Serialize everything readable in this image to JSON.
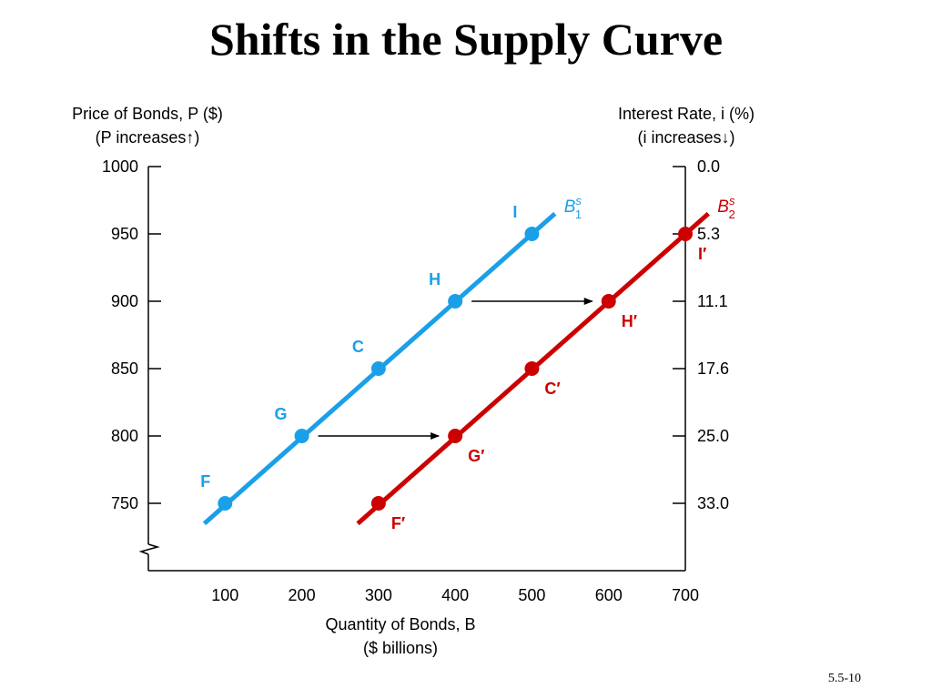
{
  "slide": {
    "title": "Shifts in the Supply Curve",
    "number": "5.5-10"
  },
  "colors": {
    "series1": "#1aa0e8",
    "series2": "#cc0000",
    "axis": "#000000"
  },
  "chart_data": {
    "type": "line",
    "title": "",
    "xlabel": "Quantity of Bonds, B",
    "xlabel_sub": "($ billions)",
    "ylabel_left": "Price of Bonds, P ($)",
    "ylabel_left_sub": "(P increases↑)",
    "ylabel_right": "Interest Rate, i (%)",
    "ylabel_right_sub": "(i increases↓)",
    "xlim": [
      0,
      700
    ],
    "ylim": [
      700,
      1000
    ],
    "xticks": [
      100,
      200,
      300,
      400,
      500,
      600,
      700
    ],
    "yticks": [
      750,
      800,
      850,
      900,
      950,
      1000
    ],
    "right_ticks": [
      "33.0",
      "25.0",
      "17.6",
      "11.1",
      "5.3",
      "0.0"
    ],
    "grid": false,
    "axis_break": true,
    "series": [
      {
        "name": "B1s",
        "label_main": "B",
        "label_sup": "s",
        "label_sub": "1",
        "color_key": "series1",
        "line": {
          "x": [
            73,
            530
          ],
          "y": [
            735,
            965
          ]
        },
        "points": [
          {
            "x": 100,
            "y": 750,
            "label": "F"
          },
          {
            "x": 200,
            "y": 800,
            "label": "G"
          },
          {
            "x": 300,
            "y": 850,
            "label": "C"
          },
          {
            "x": 400,
            "y": 900,
            "label": "H"
          },
          {
            "x": 500,
            "y": 950,
            "label": "I"
          }
        ]
      },
      {
        "name": "B2s",
        "label_main": "B",
        "label_sup": "s",
        "label_sub": "2",
        "color_key": "series2",
        "line": {
          "x": [
            273,
            730
          ],
          "y": [
            735,
            965
          ]
        },
        "points": [
          {
            "x": 300,
            "y": 750,
            "label": "F′"
          },
          {
            "x": 400,
            "y": 800,
            "label": "G′"
          },
          {
            "x": 500,
            "y": 850,
            "label": "C′"
          },
          {
            "x": 600,
            "y": 900,
            "label": "H′"
          },
          {
            "x": 700,
            "y": 950,
            "label": "I′"
          }
        ]
      }
    ],
    "shift_arrows": [
      {
        "from": [
          200,
          800
        ],
        "to": [
          400,
          800
        ]
      },
      {
        "from": [
          400,
          900
        ],
        "to": [
          600,
          900
        ]
      }
    ]
  }
}
